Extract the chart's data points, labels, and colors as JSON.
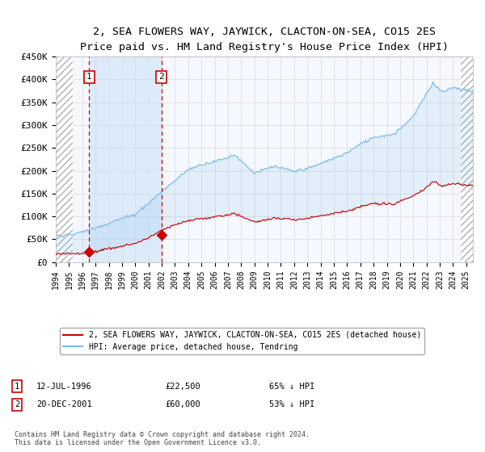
{
  "title": "2, SEA FLOWERS WAY, JAYWICK, CLACTON-ON-SEA, CO15 2ES",
  "subtitle": "Price paid vs. HM Land Registry's House Price Index (HPI)",
  "ylim": [
    0,
    450000
  ],
  "yticks": [
    0,
    50000,
    100000,
    150000,
    200000,
    250000,
    300000,
    350000,
    400000,
    450000
  ],
  "ytick_labels": [
    "£0",
    "£50K",
    "£100K",
    "£150K",
    "£200K",
    "£250K",
    "£300K",
    "£350K",
    "£400K",
    "£450K"
  ],
  "xlim_year_start": 1994.0,
  "xlim_year_end": 2025.5,
  "sale1_date_year": 1996.53,
  "sale1_price": 22500,
  "sale1_label": "12-JUL-1996",
  "sale1_amount": "£22,500",
  "sale1_pct": "65% ↓ HPI",
  "sale2_date_year": 2001.97,
  "sale2_price": 60000,
  "sale2_label": "20-DEC-2001",
  "sale2_amount": "£60,000",
  "sale2_pct": "53% ↓ HPI",
  "hpi_color": "#7ab9e8",
  "hpi_fill_color": "#cce0f5",
  "price_color": "#cc0000",
  "marker_color": "#cc0000",
  "plot_bg": "#f5f9ff",
  "grid_color": "#d8d8d8",
  "legend_label_price": "2, SEA FLOWERS WAY, JAYWICK, CLACTON-ON-SEA, CO15 2ES (detached house)",
  "legend_label_hpi": "HPI: Average price, detached house, Tendring",
  "footer": "Contains HM Land Registry data © Crown copyright and database right 2024.\nThis data is licensed under the Open Government Licence v3.0.",
  "hatch_left_end": 1995.3,
  "hatch_right_start": 2024.6
}
